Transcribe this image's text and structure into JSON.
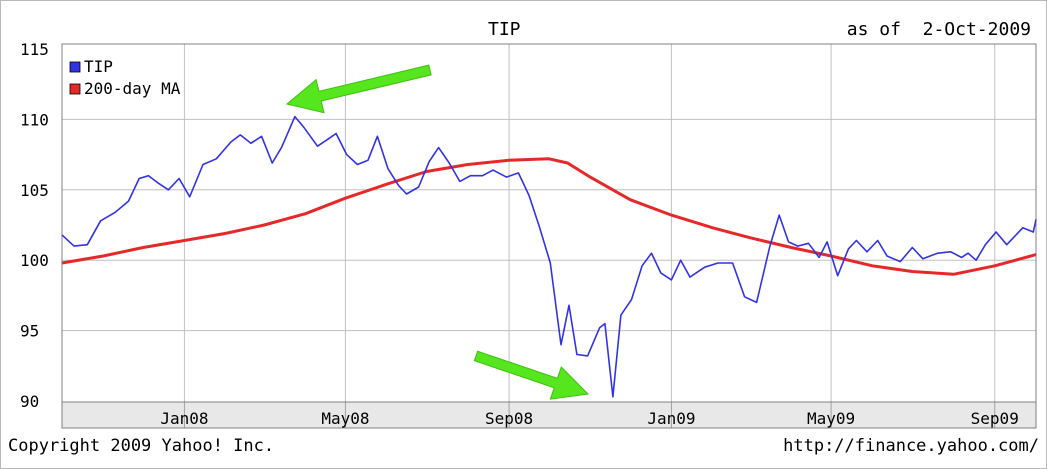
{
  "chart_data": {
    "type": "line",
    "title": "TIP",
    "as_of_label": "as of",
    "as_of_date": "2-Oct-2009",
    "x_tick_labels": [
      "Jan08",
      "May08",
      "Sep08",
      "Jan09",
      "May09",
      "Sep09"
    ],
    "y_tick_labels": [
      "115",
      "110",
      "105",
      "100",
      "95",
      "90"
    ],
    "ylim": [
      90,
      115
    ],
    "grid": true,
    "legend_position": "top-left",
    "series": [
      {
        "name": "TIP",
        "color": "#3232e6",
        "points": [
          [
            "2007-10-01",
            101.8
          ],
          [
            "2007-10-10",
            101.0
          ],
          [
            "2007-10-20",
            101.1
          ],
          [
            "2007-10-30",
            102.8
          ],
          [
            "2007-11-10",
            103.4
          ],
          [
            "2007-11-20",
            104.2
          ],
          [
            "2007-11-28",
            105.8
          ],
          [
            "2007-12-05",
            106.0
          ],
          [
            "2007-12-12",
            105.5
          ],
          [
            "2007-12-20",
            105.0
          ],
          [
            "2007-12-28",
            105.8
          ],
          [
            "2008-01-05",
            104.5
          ],
          [
            "2008-01-15",
            106.8
          ],
          [
            "2008-01-25",
            107.2
          ],
          [
            "2008-02-05",
            108.4
          ],
          [
            "2008-02-12",
            108.9
          ],
          [
            "2008-02-20",
            108.3
          ],
          [
            "2008-02-28",
            108.8
          ],
          [
            "2008-03-07",
            106.9
          ],
          [
            "2008-03-14",
            108.0
          ],
          [
            "2008-03-24",
            110.2
          ],
          [
            "2008-03-31",
            109.4
          ],
          [
            "2008-04-10",
            108.1
          ],
          [
            "2008-04-18",
            108.6
          ],
          [
            "2008-04-24",
            109.0
          ],
          [
            "2008-05-02",
            107.5
          ],
          [
            "2008-05-10",
            106.8
          ],
          [
            "2008-05-18",
            107.1
          ],
          [
            "2008-05-25",
            108.8
          ],
          [
            "2008-06-02",
            106.5
          ],
          [
            "2008-06-10",
            105.3
          ],
          [
            "2008-06-16",
            104.7
          ],
          [
            "2008-06-25",
            105.2
          ],
          [
            "2008-07-03",
            107.0
          ],
          [
            "2008-07-10",
            108.0
          ],
          [
            "2008-07-18",
            106.9
          ],
          [
            "2008-07-26",
            105.6
          ],
          [
            "2008-08-03",
            106.0
          ],
          [
            "2008-08-12",
            106.0
          ],
          [
            "2008-08-20",
            106.4
          ],
          [
            "2008-08-30",
            105.9
          ],
          [
            "2008-09-08",
            106.2
          ],
          [
            "2008-09-16",
            104.6
          ],
          [
            "2008-09-24",
            102.3
          ],
          [
            "2008-10-02",
            99.8
          ],
          [
            "2008-10-10",
            94.0
          ],
          [
            "2008-10-16",
            96.8
          ],
          [
            "2008-10-22",
            93.3
          ],
          [
            "2008-10-30",
            93.2
          ],
          [
            "2008-11-08",
            95.2
          ],
          [
            "2008-11-12",
            95.5
          ],
          [
            "2008-11-18",
            90.3
          ],
          [
            "2008-11-24",
            96.1
          ],
          [
            "2008-12-02",
            97.2
          ],
          [
            "2008-12-10",
            99.6
          ],
          [
            "2008-12-17",
            100.5
          ],
          [
            "2008-12-24",
            99.1
          ],
          [
            "2009-01-01",
            98.6
          ],
          [
            "2009-01-08",
            100.0
          ],
          [
            "2009-01-15",
            98.8
          ],
          [
            "2009-01-26",
            99.5
          ],
          [
            "2009-02-05",
            99.8
          ],
          [
            "2009-02-16",
            99.8
          ],
          [
            "2009-02-25",
            97.4
          ],
          [
            "2009-03-06",
            97.0
          ],
          [
            "2009-03-16",
            101.0
          ],
          [
            "2009-03-23",
            103.2
          ],
          [
            "2009-03-30",
            101.3
          ],
          [
            "2009-04-06",
            101.0
          ],
          [
            "2009-04-14",
            101.2
          ],
          [
            "2009-04-22",
            100.2
          ],
          [
            "2009-04-28",
            101.3
          ],
          [
            "2009-05-06",
            98.9
          ],
          [
            "2009-05-14",
            100.8
          ],
          [
            "2009-05-20",
            101.4
          ],
          [
            "2009-05-28",
            100.6
          ],
          [
            "2009-06-05",
            101.4
          ],
          [
            "2009-06-12",
            100.3
          ],
          [
            "2009-06-22",
            99.9
          ],
          [
            "2009-07-01",
            100.9
          ],
          [
            "2009-07-09",
            100.1
          ],
          [
            "2009-07-20",
            100.5
          ],
          [
            "2009-07-30",
            100.6
          ],
          [
            "2009-08-07",
            100.2
          ],
          [
            "2009-08-12",
            100.5
          ],
          [
            "2009-08-18",
            100.0
          ],
          [
            "2009-08-25",
            101.1
          ],
          [
            "2009-09-02",
            102.0
          ],
          [
            "2009-09-10",
            101.1
          ],
          [
            "2009-09-15",
            101.6
          ],
          [
            "2009-09-22",
            102.3
          ],
          [
            "2009-09-30",
            102.0
          ],
          [
            "2009-10-02",
            102.9
          ]
        ]
      },
      {
        "name": "200-day MA",
        "color": "#e62828",
        "points": [
          [
            "2007-10-01",
            99.8
          ],
          [
            "2007-11-01",
            100.3
          ],
          [
            "2007-12-01",
            100.9
          ],
          [
            "2008-01-01",
            101.4
          ],
          [
            "2008-02-01",
            101.9
          ],
          [
            "2008-03-01",
            102.5
          ],
          [
            "2008-04-01",
            103.3
          ],
          [
            "2008-05-01",
            104.4
          ],
          [
            "2008-06-01",
            105.4
          ],
          [
            "2008-07-01",
            106.3
          ],
          [
            "2008-08-01",
            106.8
          ],
          [
            "2008-09-01",
            107.1
          ],
          [
            "2008-10-01",
            107.2
          ],
          [
            "2008-10-15",
            106.9
          ],
          [
            "2008-11-01",
            105.9
          ],
          [
            "2008-12-01",
            104.3
          ],
          [
            "2009-01-01",
            103.2
          ],
          [
            "2009-02-01",
            102.3
          ],
          [
            "2009-03-01",
            101.6
          ],
          [
            "2009-04-01",
            100.9
          ],
          [
            "2009-05-01",
            100.3
          ],
          [
            "2009-06-01",
            99.6
          ],
          [
            "2009-07-01",
            99.2
          ],
          [
            "2009-08-01",
            99.0
          ],
          [
            "2009-09-01",
            99.6
          ],
          [
            "2009-10-02",
            100.4
          ]
        ]
      }
    ],
    "annotations": [
      {
        "type": "arrow",
        "color": "#55e61e",
        "points_to": "TIP peak ~110 (Mar 2008)"
      },
      {
        "type": "arrow",
        "color": "#55e61e",
        "points_to": "TIP low ~90 (Nov 2008)"
      }
    ]
  },
  "footer": {
    "copyright": "Copyright 2009 Yahoo! Inc.",
    "url": "http://finance.yahoo.com/"
  }
}
